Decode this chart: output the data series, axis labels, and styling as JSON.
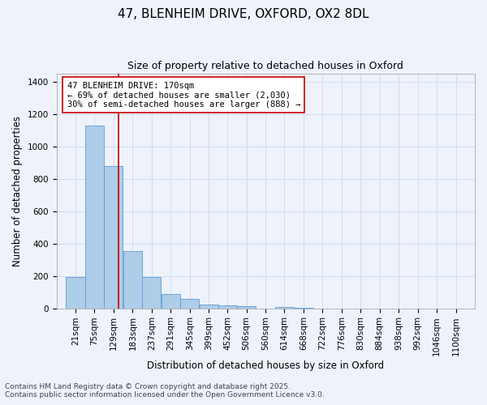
{
  "title1": "47, BLENHEIM DRIVE, OXFORD, OX2 8DL",
  "title2": "Size of property relative to detached houses in Oxford",
  "xlabel": "Distribution of detached houses by size in Oxford",
  "ylabel": "Number of detached properties",
  "bar_color": "#aecde8",
  "bar_edge_color": "#5b9bd5",
  "background_color": "#eef2fb",
  "annotation_text": "47 BLENHEIM DRIVE: 170sqm\n← 69% of detached houses are smaller (2,030)\n30% of semi-detached houses are larger (888) →",
  "red_line_x": 170,
  "categories": [
    "21sqm",
    "75sqm",
    "129sqm",
    "183sqm",
    "237sqm",
    "291sqm",
    "345sqm",
    "399sqm",
    "452sqm",
    "506sqm",
    "560sqm",
    "614sqm",
    "668sqm",
    "722sqm",
    "776sqm",
    "830sqm",
    "884sqm",
    "938sqm",
    "992sqm",
    "1046sqm",
    "1100sqm"
  ],
  "bin_edges": [
    21,
    75,
    129,
    183,
    237,
    291,
    345,
    399,
    452,
    506,
    560,
    614,
    668,
    722,
    776,
    830,
    884,
    938,
    992,
    1046,
    1100
  ],
  "bin_width": 54,
  "values": [
    195,
    1130,
    880,
    355,
    195,
    90,
    57,
    22,
    18,
    14,
    0,
    10,
    5,
    0,
    0,
    0,
    0,
    0,
    0,
    0,
    0
  ],
  "ylim": [
    0,
    1450
  ],
  "yticks": [
    0,
    200,
    400,
    600,
    800,
    1000,
    1200,
    1400
  ],
  "footnote1": "Contains HM Land Registry data © Crown copyright and database right 2025.",
  "footnote2": "Contains public sector information licensed under the Open Government Licence v3.0.",
  "annotation_box_color": "#ffffff",
  "annotation_box_edge": "#cc0000",
  "red_line_color": "#cc0000",
  "title1_fontsize": 11,
  "title2_fontsize": 9,
  "axis_fontsize": 8.5,
  "tick_fontsize": 7.5,
  "annot_fontsize": 7.5,
  "footnote_fontsize": 6.5,
  "grid_color": "#d0ddf0"
}
